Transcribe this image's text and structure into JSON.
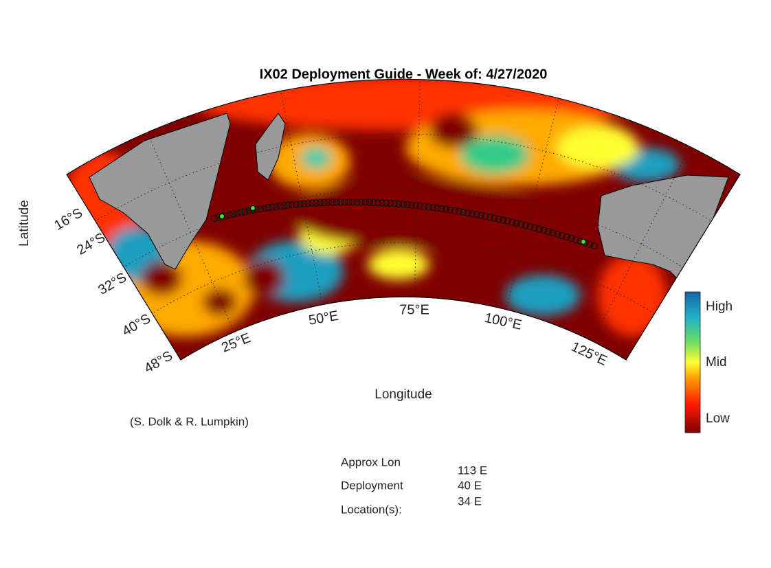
{
  "title": "IX02 Deployment Guide - Week of: 4/27/2020",
  "axes": {
    "y_label": "Latitude",
    "x_label": "Longitude",
    "lat_ticks": [
      "16°S",
      "24°S",
      "32°S",
      "40°S",
      "48°S"
    ],
    "lon_ticks": [
      "25°E",
      "50°E",
      "75°E",
      "100°E",
      "125°E"
    ]
  },
  "colorbar": {
    "labels": [
      "High",
      "Mid",
      "Low"
    ]
  },
  "credit": "(S. Dolk & R. Lumpkin)",
  "info": {
    "labels": [
      "Approx Lon",
      "Deployment",
      "Location(s):"
    ],
    "values": [
      "113 E",
      "40 E",
      "34 E"
    ]
  }
}
